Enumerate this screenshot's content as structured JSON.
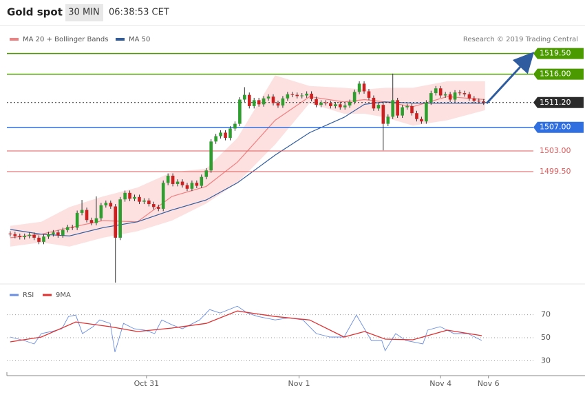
{
  "header": {
    "title": "Gold spot",
    "timeframe": "30 MIN",
    "time": "06:38:53 CET"
  },
  "chart_data": [
    {
      "type": "candlestick",
      "source": "Research © 2019 Trading Central",
      "xlim": [
        -0.7,
        109.4
      ],
      "ylim": [
        1480.7,
        1523.9
      ],
      "up_color": "#2e9e2e",
      "down_color": "#cc2020",
      "open": [
        1489.0,
        1488.9,
        1488.6,
        1488.4,
        1488.6,
        1488.8,
        1488.3,
        1487.6,
        1488.5,
        1488.9,
        1489.2,
        1488.7,
        1489.6,
        1490.1,
        1490.0,
        1492.5,
        1493.0,
        1491.3,
        1490.8,
        1491.6,
        1493.8,
        1494.2,
        1493.6,
        1488.3,
        1494.8,
        1495.9,
        1494.9,
        1495.2,
        1494.4,
        1494.6,
        1494.0,
        1493.5,
        1493.2,
        1497.6,
        1498.8,
        1497.4,
        1497.8,
        1497.2,
        1496.6,
        1497.6,
        1497.1,
        1498.6,
        1499.7,
        1504.6,
        1505.5,
        1506.1,
        1505.2,
        1506.8,
        1507.6,
        1511.7,
        1512.5,
        1510.6,
        1511.6,
        1510.9,
        1511.9,
        1512.2,
        1511.1,
        1510.7,
        1511.9,
        1512.6,
        1512.5,
        1512.3,
        1512.4,
        1512.7,
        1511.8,
        1510.8,
        1511.2,
        1511.1,
        1510.6,
        1510.9,
        1510.4,
        1510.7,
        1511.3,
        1513.0,
        1514.4,
        1513.1,
        1512.0,
        1510.2,
        1510.8,
        1507.6,
        1508.8,
        1511.6,
        1509.0,
        1510.4,
        1510.6,
        1509.4,
        1508.4,
        1508.0,
        1511.2,
        1512.8,
        1513.6,
        1512.4,
        1512.6,
        1511.7,
        1512.9,
        1512.8,
        1512.6,
        1511.9,
        1511.5,
        1511.4
      ],
      "high": [
        1489.4,
        1489.3,
        1489.0,
        1489.0,
        1489.2,
        1489.2,
        1488.7,
        1488.9,
        1489.3,
        1489.6,
        1489.6,
        1490.0,
        1490.5,
        1490.5,
        1492.9,
        1494.7,
        1493.4,
        1491.7,
        1495.3,
        1494.2,
        1494.6,
        1494.6,
        1494.0,
        1495.2,
        1496.3,
        1496.3,
        1495.6,
        1495.6,
        1495.0,
        1495.0,
        1494.4,
        1493.9,
        1498.0,
        1499.2,
        1499.2,
        1498.2,
        1498.2,
        1497.6,
        1498.0,
        1498.0,
        1499.0,
        1500.1,
        1505.0,
        1505.9,
        1506.5,
        1506.5,
        1507.2,
        1508.0,
        1512.1,
        1513.8,
        1512.9,
        1512.0,
        1512.0,
        1512.3,
        1512.6,
        1512.6,
        1511.5,
        1512.3,
        1513.0,
        1513.0,
        1512.9,
        1512.8,
        1513.1,
        1513.1,
        1512.2,
        1511.6,
        1511.6,
        1511.5,
        1511.3,
        1511.3,
        1511.1,
        1511.7,
        1513.4,
        1514.8,
        1514.8,
        1513.5,
        1512.4,
        1511.2,
        1511.2,
        1509.2,
        1516.1,
        1512.0,
        1510.8,
        1511.0,
        1511.0,
        1509.8,
        1508.8,
        1511.6,
        1513.2,
        1514.0,
        1514.0,
        1513.0,
        1513.0,
        1513.3,
        1513.3,
        1513.2,
        1513.0,
        1512.3,
        1511.9,
        1511.8
      ],
      "low": [
        1488.5,
        1488.2,
        1488.0,
        1488.0,
        1488.2,
        1487.9,
        1487.2,
        1487.2,
        1488.1,
        1488.5,
        1488.3,
        1488.3,
        1489.2,
        1489.6,
        1489.6,
        1492.1,
        1490.9,
        1490.4,
        1490.4,
        1491.2,
        1493.4,
        1493.2,
        1480.7,
        1487.9,
        1494.4,
        1494.5,
        1494.5,
        1494.0,
        1494.0,
        1493.6,
        1493.1,
        1492.8,
        1492.8,
        1497.2,
        1497.0,
        1497.0,
        1496.8,
        1496.2,
        1496.2,
        1496.7,
        1496.7,
        1498.2,
        1499.3,
        1504.2,
        1505.1,
        1504.8,
        1504.8,
        1506.4,
        1507.2,
        1511.3,
        1510.2,
        1510.2,
        1510.5,
        1510.5,
        1511.5,
        1510.7,
        1510.3,
        1510.3,
        1511.5,
        1512.1,
        1511.9,
        1511.9,
        1512.0,
        1511.4,
        1510.4,
        1510.4,
        1510.7,
        1510.2,
        1510.2,
        1510.0,
        1510.0,
        1510.3,
        1510.9,
        1512.6,
        1512.7,
        1511.6,
        1509.8,
        1509.8,
        1503.1,
        1507.2,
        1508.4,
        1508.6,
        1508.6,
        1510.0,
        1509.0,
        1508.0,
        1507.6,
        1507.6,
        1510.8,
        1512.4,
        1512.0,
        1512.0,
        1511.3,
        1511.3,
        1512.4,
        1512.2,
        1511.5,
        1511.1,
        1511.0,
        1510.8
      ],
      "close": [
        1488.9,
        1488.6,
        1488.4,
        1488.6,
        1488.8,
        1488.3,
        1487.6,
        1488.5,
        1488.9,
        1489.2,
        1488.7,
        1489.6,
        1490.1,
        1490.0,
        1492.5,
        1493.0,
        1491.3,
        1490.8,
        1491.6,
        1493.8,
        1494.2,
        1493.6,
        1488.3,
        1494.8,
        1495.9,
        1494.9,
        1495.2,
        1494.4,
        1494.6,
        1494.0,
        1493.5,
        1493.2,
        1497.6,
        1498.8,
        1497.4,
        1497.8,
        1497.2,
        1496.6,
        1497.6,
        1497.1,
        1498.6,
        1499.7,
        1504.6,
        1505.5,
        1506.1,
        1505.2,
        1506.8,
        1507.6,
        1511.7,
        1512.5,
        1510.6,
        1511.6,
        1510.9,
        1511.9,
        1512.2,
        1511.1,
        1510.7,
        1511.9,
        1512.6,
        1512.5,
        1512.3,
        1512.4,
        1512.7,
        1511.8,
        1510.8,
        1511.2,
        1511.1,
        1510.6,
        1510.9,
        1510.4,
        1510.7,
        1511.3,
        1513.0,
        1514.4,
        1513.1,
        1512.0,
        1510.2,
        1510.8,
        1507.6,
        1508.8,
        1511.6,
        1509.0,
        1510.4,
        1510.6,
        1509.4,
        1508.4,
        1508.0,
        1511.2,
        1512.8,
        1513.6,
        1512.4,
        1512.6,
        1511.7,
        1512.9,
        1512.8,
        1512.6,
        1511.9,
        1511.5,
        1511.4,
        1511.2
      ],
      "series": [
        {
          "name": "MA 20 + Bollinger Bands",
          "color": "#f08080",
          "band_color": "#fde0e0",
          "x": [
            0,
            6.5,
            12.4,
            19.4,
            26.6,
            33.8,
            41,
            47.5,
            55.4,
            62.6,
            69.8,
            74.1,
            78.4,
            84.2,
            91.4,
            99.3
          ],
          "values": [
            1488.3,
            1488.9,
            1490.0,
            1491.2,
            1491.0,
            1495.3,
            1497.0,
            1501.1,
            1508.2,
            1512.2,
            1511.3,
            1511.7,
            1511.3,
            1510.5,
            1512.2,
            1511.7
          ],
          "upper": [
            1490.3,
            1491.0,
            1493.5,
            1495.3,
            1496.8,
            1499.4,
            1500.0,
            1505.2,
            1515.8,
            1514.0,
            1513.7,
            1513.4,
            1513.7,
            1513.7,
            1514.8,
            1514.8
          ],
          "lower": [
            1486.8,
            1487.5,
            1486.8,
            1488.3,
            1489.4,
            1491.2,
            1494.1,
            1497.6,
            1504.1,
            1511.1,
            1509.3,
            1509.3,
            1508.7,
            1507.3,
            1508.2,
            1509.9
          ]
        },
        {
          "name": "MA 50",
          "color": "#2e5c9e",
          "x": [
            0,
            6.5,
            12.4,
            19.4,
            26.6,
            33.8,
            41,
            47.5,
            55.4,
            62.6,
            69.8,
            74.1,
            78.4,
            84.2,
            91.4,
            99.3
          ],
          "values": [
            1489.7,
            1488.9,
            1488.6,
            1490.0,
            1491.0,
            1493.0,
            1494.7,
            1497.6,
            1502.3,
            1506.1,
            1508.7,
            1510.9,
            1511.3,
            1511.1,
            1511.1,
            1511.1
          ]
        }
      ],
      "levels": [
        {
          "value": 1519.5,
          "label": "1519.50",
          "color": "#4a9a00",
          "box": true,
          "dashed": false
        },
        {
          "value": 1516,
          "label": "1516.00",
          "color": "#4a9a00",
          "box": true,
          "dashed": false
        },
        {
          "value": 1511.2,
          "label": "1511.20",
          "color": "#2b2b2b",
          "box": true,
          "dashed": true
        },
        {
          "value": 1507,
          "label": "1507.00",
          "color": "#2f6fe0",
          "box": true,
          "dashed": false
        },
        {
          "value": 1503,
          "label": "1503.00",
          "color": "#e05a5a",
          "box": false,
          "dashed": false
        },
        {
          "value": 1499.5,
          "label": "1499.50",
          "color": "#e05a5a",
          "box": false,
          "dashed": false
        }
      ]
    },
    {
      "type": "line",
      "xlim": [
        -0.7,
        109.4
      ],
      "ylim": [
        20,
        95
      ],
      "yticks": [
        70,
        50,
        30
      ],
      "xticks": [
        {
          "value": 28.5,
          "label": "Oct 31"
        },
        {
          "value": 60.4,
          "label": "Nov 1"
        },
        {
          "value": 90,
          "label": "Nov 4"
        },
        {
          "value": 100,
          "label": "Nov 6"
        }
      ],
      "series": [
        {
          "name": "RSI",
          "color": "#6a8ee0",
          "x": [
            0,
            2.9,
            5,
            6.5,
            8.6,
            10.8,
            12.2,
            13.7,
            15.1,
            17.3,
            18.7,
            20.9,
            21.9,
            23.7,
            25.9,
            28.1,
            30.2,
            31.7,
            33.8,
            36,
            39.6,
            41.7,
            43.9,
            47.5,
            49.6,
            51.8,
            55.4,
            58.3,
            61.2,
            64,
            66.9,
            69.8,
            72.4,
            75.5,
            77.7,
            78.4,
            80.6,
            82.7,
            86.3,
            87.3,
            89.9,
            92.8,
            95.7,
            98.6
          ],
          "values": [
            50.6,
            47.6,
            44.6,
            53.6,
            55.4,
            57.8,
            68.5,
            69.7,
            53.6,
            59.6,
            65.5,
            62.5,
            37.5,
            62.5,
            57.8,
            56.6,
            53.6,
            65.5,
            61.3,
            57.8,
            65.5,
            74.5,
            71.5,
            77.5,
            71.5,
            68.5,
            65.5,
            67.3,
            65.5,
            53.6,
            50.6,
            50.6,
            69.7,
            47.6,
            47.6,
            38.7,
            53.6,
            47.6,
            44.6,
            56.6,
            59.6,
            53.6,
            53.6,
            47.6
          ]
        },
        {
          "name": "9MA",
          "color": "#e03030",
          "x": [
            0,
            6.5,
            13.7,
            20.9,
            26.6,
            33.8,
            41,
            47.5,
            55.4,
            62.6,
            69.8,
            74.1,
            78.4,
            84.2,
            91.4,
            98.6
          ],
          "values": [
            46.4,
            50.6,
            63.7,
            59.6,
            55.4,
            58.4,
            62.5,
            73.3,
            68.5,
            65.5,
            50.6,
            55.4,
            48.8,
            48.2,
            56.6,
            51.8
          ]
        }
      ]
    }
  ]
}
